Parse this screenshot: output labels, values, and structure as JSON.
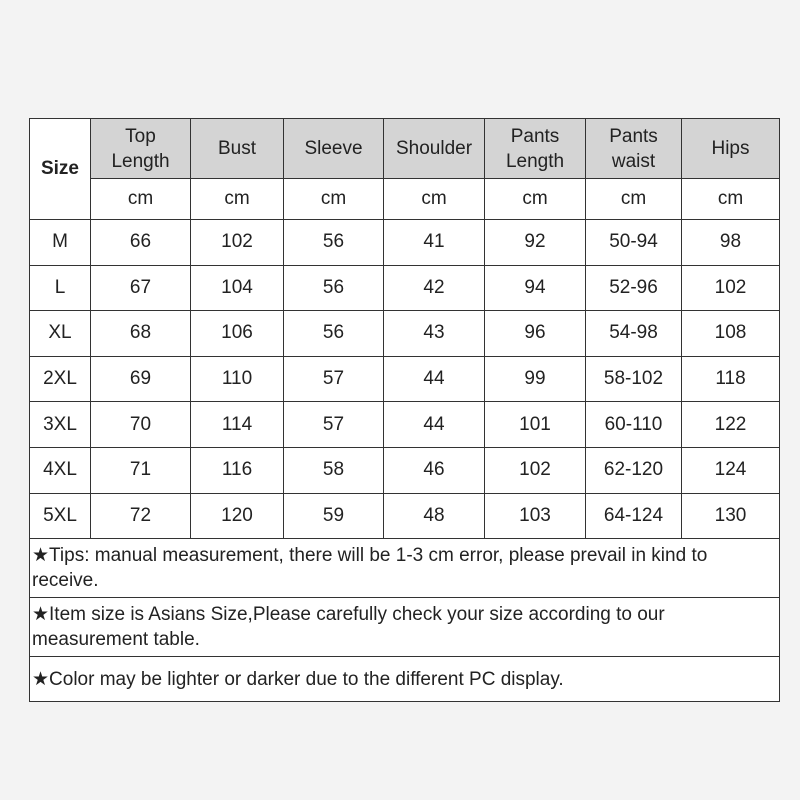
{
  "table": {
    "size_label": "Size",
    "headers": [
      "Top Length",
      "Bust",
      "Sleeve",
      "Shoulder",
      "Pants Length",
      "Pants waist",
      "Hips"
    ],
    "header_lines": [
      [
        "Top",
        "Length"
      ],
      [
        "Bust"
      ],
      [
        "Sleeve"
      ],
      [
        "Shoulder"
      ],
      [
        "Pants",
        "Length"
      ],
      [
        "Pants",
        "waist"
      ],
      [
        "Hips"
      ]
    ],
    "unit": "cm",
    "rows": [
      [
        "M",
        "66",
        "102",
        "56",
        "41",
        "92",
        "50-94",
        "98"
      ],
      [
        "L",
        "67",
        "104",
        "56",
        "42",
        "94",
        "52-96",
        "102"
      ],
      [
        "XL",
        "68",
        "106",
        "56",
        "43",
        "96",
        "54-98",
        "108"
      ],
      [
        "2XL",
        "69",
        "110",
        "57",
        "44",
        "99",
        "58-102",
        "118"
      ],
      [
        "3XL",
        "70",
        "114",
        "57",
        "44",
        "101",
        "60-110",
        "122"
      ],
      [
        "4XL",
        "71",
        "116",
        "58",
        "46",
        "102",
        "62-120",
        "124"
      ],
      [
        "5XL",
        "72",
        "120",
        "59",
        "48",
        "103",
        "64-124",
        "130"
      ]
    ],
    "header_color": "#d4d4d4"
  },
  "notes": [
    "★Tips: manual measurement, there will be 1-3 cm error, please prevail in kind to receive.",
    "★Item size is Asians Size,Please carefully check your size according to our measurement table.",
    "★Color may be lighter or darker due to the different PC display."
  ]
}
